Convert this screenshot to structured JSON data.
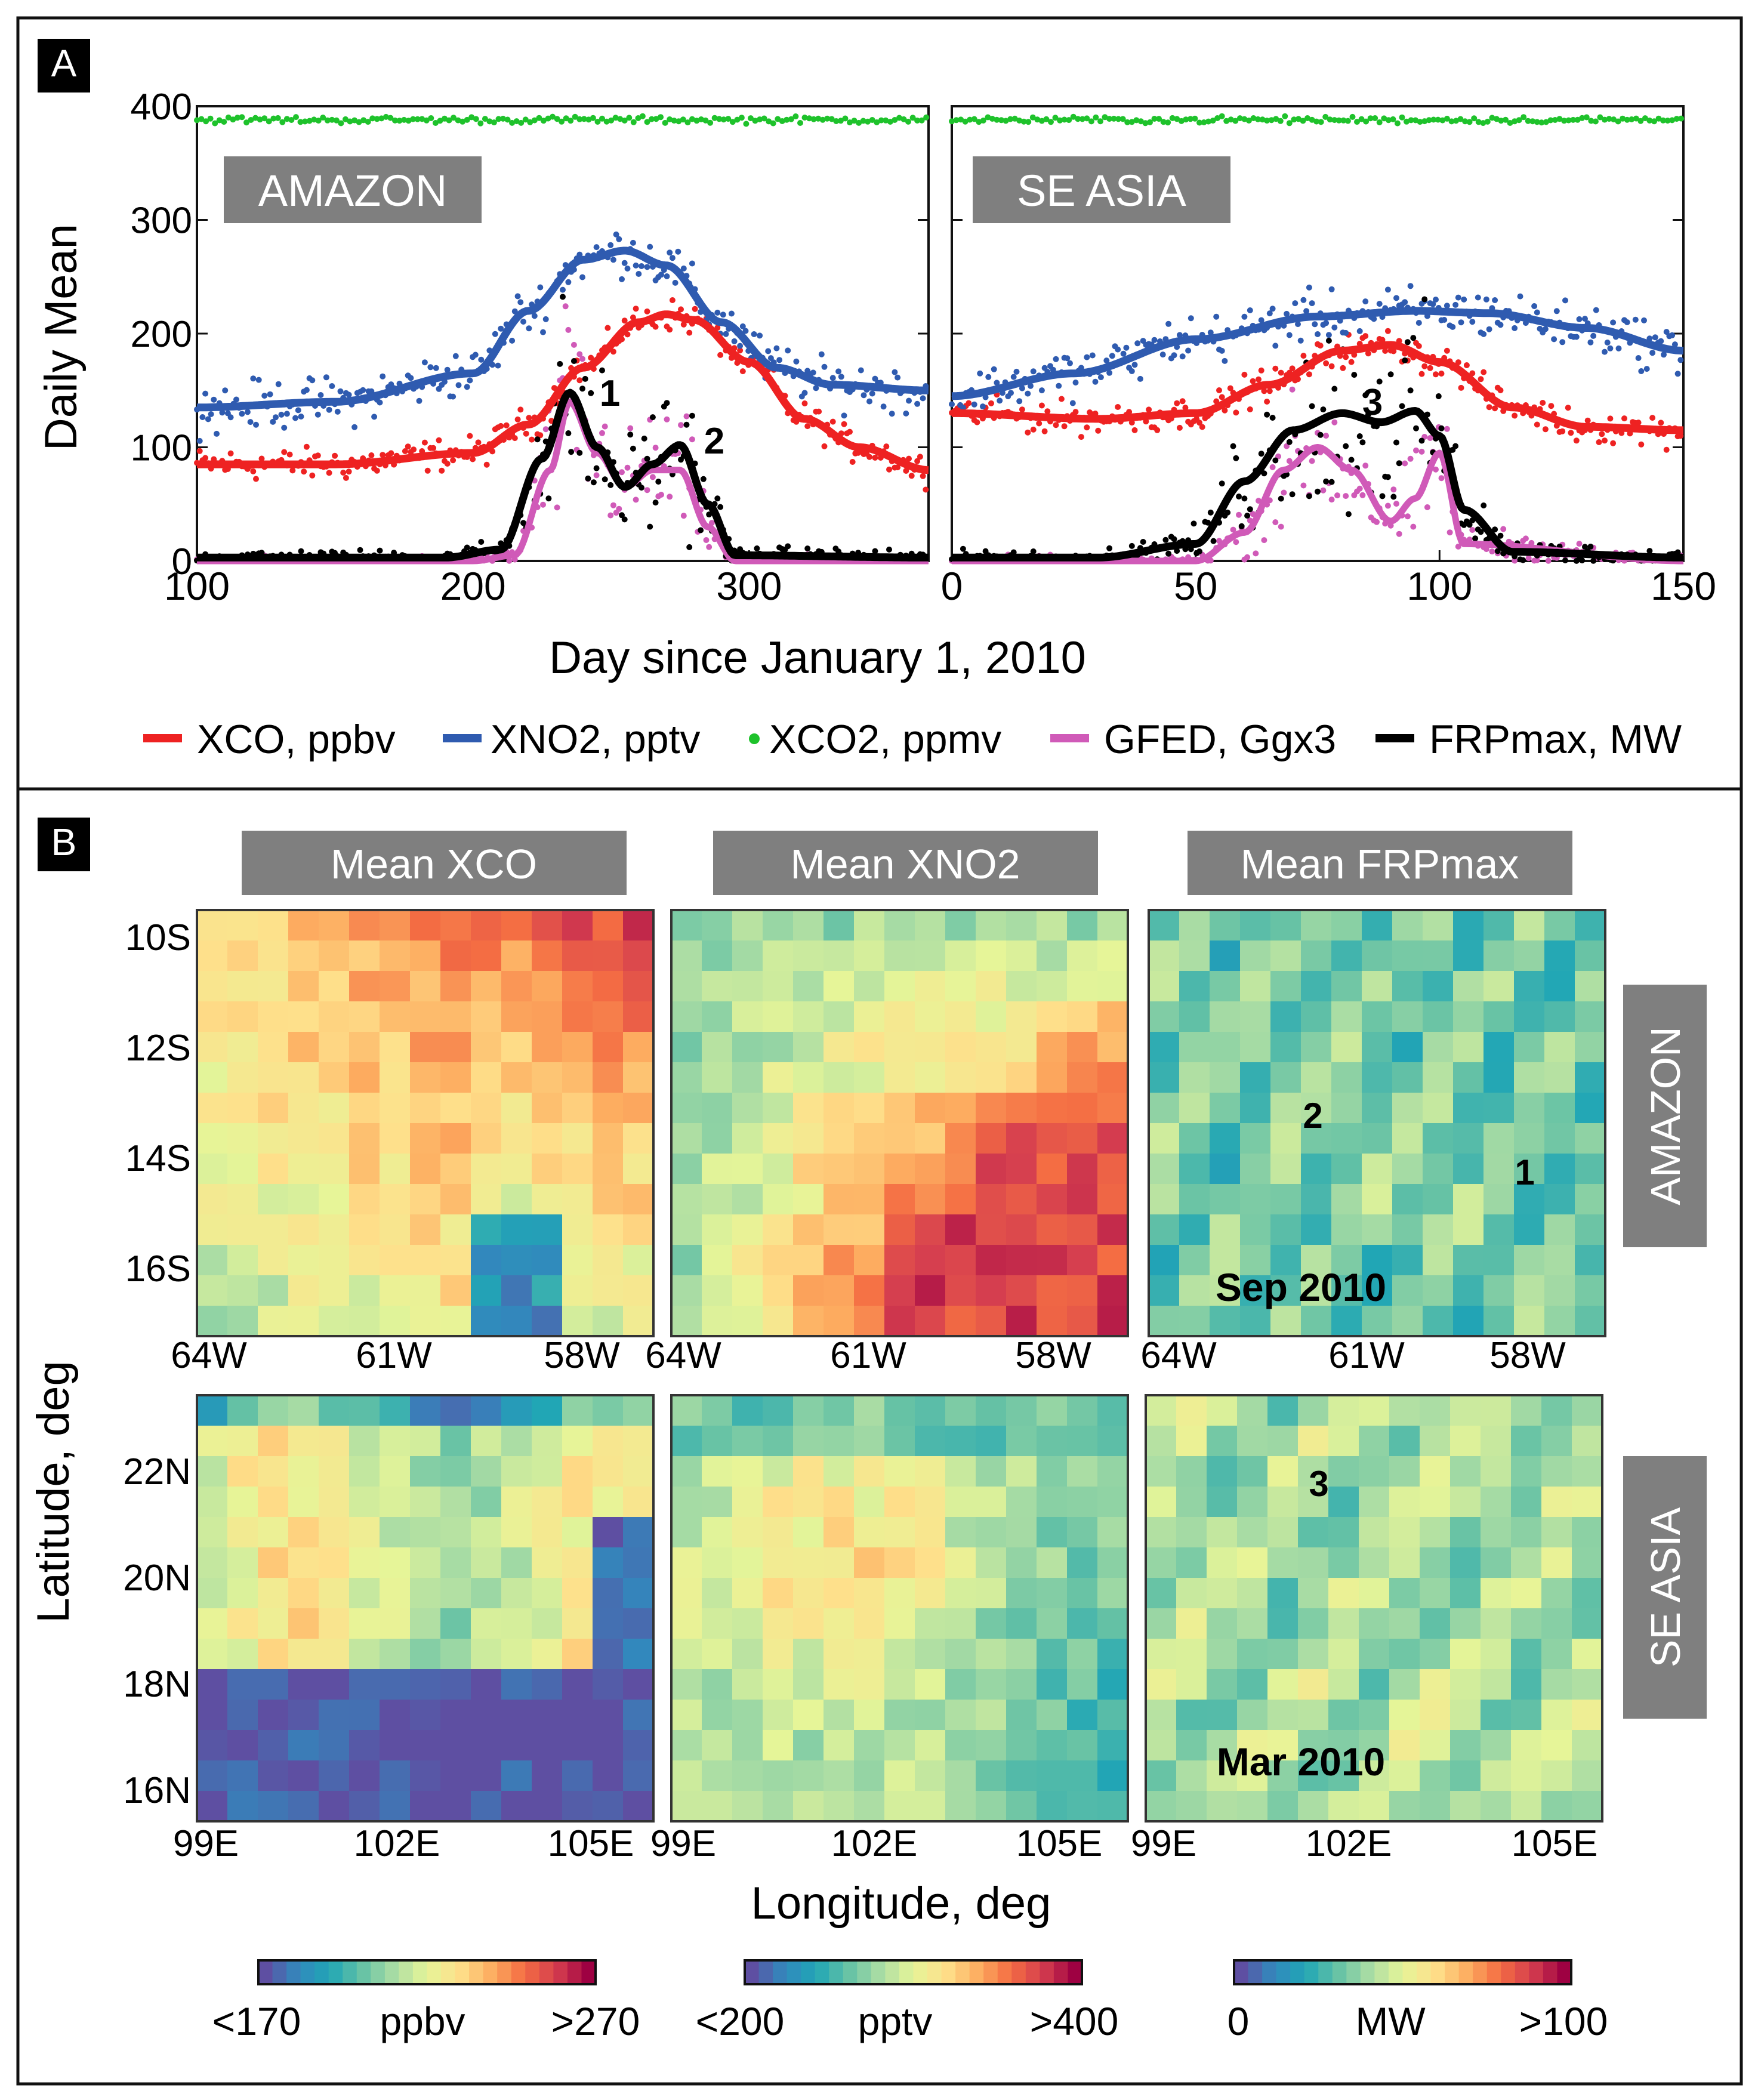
{
  "panel_a": {
    "label": "A",
    "ylabel": "Daily Mean",
    "xlabel": "Day since January 1, 2010",
    "legend": [
      {
        "label": "XCO, ppbv",
        "color": "#ee2222",
        "style": "line"
      },
      {
        "label": "XNO2, pptv",
        "color": "#2f5bb0",
        "style": "line"
      },
      {
        "label": "XCO2, ppmv",
        "color": "#1ec22b",
        "style": "dot"
      },
      {
        "label": "GFED, Ggx3",
        "color": "#d05ab8",
        "style": "line"
      },
      {
        "label": "FRPmax, MW",
        "color": "#000000",
        "style": "line"
      }
    ]
  },
  "panel_b": {
    "label": "B",
    "ylabel": "Latitude, deg",
    "xlabel": "Longitude, deg",
    "col_titles": [
      "Mean XCO",
      "Mean XNO2",
      "Mean FRPmax"
    ],
    "row_labels": [
      "AMAZON",
      "SE ASIA"
    ],
    "dates": [
      "Sep 2010",
      "Mar 2010"
    ],
    "annotations_amazon": [
      "2",
      "1"
    ],
    "annotations_seasia": [
      "3"
    ],
    "amazon_lat_ticks": [
      "10S",
      "12S",
      "14S",
      "16S"
    ],
    "amazon_lon_ticks": [
      "64W",
      "61W",
      "58W"
    ],
    "seasia_lat_ticks": [
      "22N",
      "20N",
      "18N",
      "16N"
    ],
    "seasia_lon_ticks": [
      "99E",
      "102E",
      "105E"
    ],
    "colorbars": [
      {
        "low": "<170",
        "unit": "ppbv",
        "high": ">270"
      },
      {
        "low": "<200",
        "unit": "pptv",
        "high": ">400"
      },
      {
        "low": "0",
        "unit": "MW",
        "high": ">100"
      }
    ]
  },
  "colors": {
    "xco": "#ee2222",
    "xno2": "#2f5bb0",
    "xco2": "#1ec22b",
    "gfed": "#d05ab8",
    "frp": "#000000",
    "label_box": "#7f7f7f"
  },
  "chart_data": [
    {
      "type": "line",
      "title": "AMAZON",
      "xlabel": "Day since January 1, 2010",
      "ylabel": "Daily Mean",
      "xlim": [
        100,
        365
      ],
      "ylim": [
        0,
        400
      ],
      "xticks": [
        100,
        200,
        300
      ],
      "yticks": [
        0,
        100,
        200,
        300,
        400
      ],
      "annotations": [
        {
          "text": "1",
          "x": 237,
          "y": 160
        },
        {
          "text": "2",
          "x": 283,
          "y": 108
        }
      ],
      "series": [
        {
          "name": "XCO, ppbv",
          "x": [
            100,
            150,
            200,
            220,
            240,
            260,
            270,
            280,
            300,
            320,
            340,
            365
          ],
          "values": [
            85,
            85,
            95,
            120,
            170,
            210,
            217,
            212,
            175,
            125,
            100,
            80
          ]
        },
        {
          "name": "XNO2, pptv",
          "x": [
            100,
            150,
            200,
            220,
            240,
            255,
            270,
            290,
            310,
            330,
            365
          ],
          "values": [
            135,
            140,
            165,
            220,
            265,
            273,
            260,
            210,
            170,
            155,
            150
          ]
        },
        {
          "name": "XCO2, ppmv",
          "x": [
            100,
            200,
            300,
            365
          ],
          "values": [
            388,
            388,
            388,
            388
          ]
        },
        {
          "name": "GFED, Ggx3",
          "x": [
            100,
            200,
            215,
            228,
            235,
            245,
            255,
            265,
            275,
            285,
            295,
            365
          ],
          "values": [
            0,
            0,
            5,
            80,
            140,
            95,
            65,
            80,
            80,
            30,
            0,
            0
          ]
        },
        {
          "name": "FRPmax, MW",
          "x": [
            100,
            190,
            210,
            225,
            235,
            245,
            255,
            265,
            275,
            285,
            295,
            365
          ],
          "values": [
            3,
            3,
            10,
            90,
            148,
            100,
            65,
            85,
            102,
            50,
            5,
            3
          ]
        }
      ]
    },
    {
      "type": "line",
      "title": "SE ASIA",
      "xlabel": "Day since January 1, 2010",
      "ylabel": "Daily Mean",
      "xlim": [
        0,
        150
      ],
      "ylim": [
        0,
        400
      ],
      "xticks": [
        0,
        50,
        100,
        150
      ],
      "yticks": [
        0,
        100,
        200,
        300,
        400
      ],
      "annotations": [
        {
          "text": "3",
          "x": 87,
          "y": 140
        }
      ],
      "series": [
        {
          "name": "XCO, ppbv",
          "x": [
            0,
            30,
            50,
            65,
            80,
            90,
            100,
            115,
            130,
            150
          ],
          "values": [
            130,
            125,
            130,
            155,
            185,
            190,
            175,
            135,
            118,
            115
          ]
        },
        {
          "name": "XNO2, pptv",
          "x": [
            0,
            25,
            50,
            75,
            95,
            110,
            130,
            150
          ],
          "values": [
            145,
            165,
            195,
            215,
            220,
            218,
            205,
            185
          ]
        },
        {
          "name": "XCO2, ppmv",
          "x": [
            0,
            50,
            100,
            150
          ],
          "values": [
            388,
            388,
            388,
            388
          ]
        },
        {
          "name": "GFED, Ggx3",
          "x": [
            0,
            50,
            60,
            68,
            75,
            82,
            90,
            95,
            100,
            105,
            150
          ],
          "values": [
            0,
            0,
            25,
            80,
            100,
            80,
            35,
            55,
            95,
            15,
            0
          ]
        },
        {
          "name": "FRPmax, MW",
          "x": [
            0,
            30,
            50,
            60,
            70,
            80,
            88,
            95,
            100,
            105,
            115,
            150
          ],
          "values": [
            3,
            3,
            15,
            70,
            115,
            130,
            122,
            132,
            110,
            45,
            8,
            3
          ]
        }
      ]
    },
    {
      "type": "heatmap",
      "title": "Mean XCO",
      "rows": [
        "AMAZON",
        "SE ASIA"
      ],
      "colorbar": {
        "low": "<170",
        "unit": "ppbv",
        "high": ">270"
      }
    },
    {
      "type": "heatmap",
      "title": "Mean XNO2",
      "rows": [
        "AMAZON",
        "SE ASIA"
      ],
      "colorbar": {
        "low": "<200",
        "unit": "pptv",
        "high": ">400"
      }
    },
    {
      "type": "heatmap",
      "title": "Mean FRPmax",
      "rows": [
        "AMAZON",
        "SE ASIA"
      ],
      "colorbar": {
        "low": "0",
        "unit": "MW",
        "high": ">100"
      }
    }
  ]
}
